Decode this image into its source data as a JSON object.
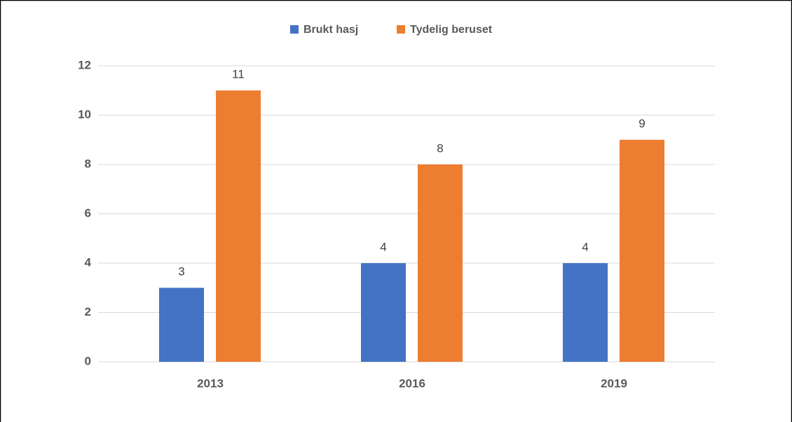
{
  "chart_data": {
    "type": "bar",
    "categories": [
      "2013",
      "2016",
      "2019"
    ],
    "series": [
      {
        "name": "Brukt hasj",
        "color": "#4472c4",
        "values": [
          3,
          4,
          4
        ]
      },
      {
        "name": "Tydelig beruset",
        "color": "#ed7d31",
        "values": [
          11,
          8,
          9
        ]
      }
    ],
    "ylim": [
      0,
      12
    ],
    "yticks": [
      0,
      2,
      4,
      6,
      8,
      10,
      12
    ],
    "grid": true,
    "legend": "top"
  }
}
